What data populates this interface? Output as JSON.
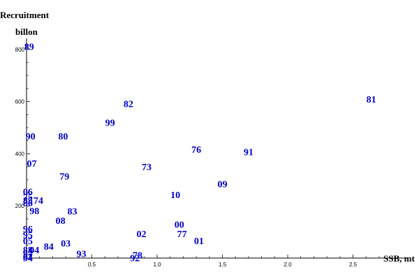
{
  "chart_data": {
    "type": "scatter",
    "title": "",
    "xlabel": "SSB, mt",
    "ylabel_line1": "Recruitment",
    "ylabel_line2": "billon",
    "xlim": [
      0,
      3.0
    ],
    "ylim": [
      0,
      850
    ],
    "x_ticks": [
      "0.5",
      "1.0",
      "1.5",
      "2.0",
      "2.5"
    ],
    "y_ticks": [
      "200",
      "400",
      "600",
      "800"
    ],
    "grid": false,
    "legend": "none",
    "point_color": "#0000cc",
    "points": [
      {
        "label": "89",
        "x": 0.02,
        "y": 812
      },
      {
        "label": "81",
        "x": 2.64,
        "y": 610
      },
      {
        "label": "82",
        "x": 0.78,
        "y": 592
      },
      {
        "label": "99",
        "x": 0.64,
        "y": 520
      },
      {
        "label": "90",
        "x": 0.03,
        "y": 468
      },
      {
        "label": "80",
        "x": 0.28,
        "y": 468
      },
      {
        "label": "76",
        "x": 1.3,
        "y": 417
      },
      {
        "label": "91",
        "x": 1.7,
        "y": 408
      },
      {
        "label": "07",
        "x": 0.04,
        "y": 363
      },
      {
        "label": "73",
        "x": 0.92,
        "y": 350
      },
      {
        "label": "79",
        "x": 0.29,
        "y": 314
      },
      {
        "label": "09",
        "x": 1.5,
        "y": 285
      },
      {
        "label": "06",
        "x": 0.01,
        "y": 255
      },
      {
        "label": "10",
        "x": 1.14,
        "y": 243
      },
      {
        "label": "75",
        "x": 0.01,
        "y": 235
      },
      {
        "label": "74",
        "x": 0.09,
        "y": 222
      },
      {
        "label": "85",
        "x": 0.01,
        "y": 222
      },
      {
        "label": "86",
        "x": 0.01,
        "y": 212
      },
      {
        "label": "98",
        "x": 0.06,
        "y": 182
      },
      {
        "label": "83",
        "x": 0.35,
        "y": 180
      },
      {
        "label": "08",
        "x": 0.26,
        "y": 144
      },
      {
        "label": "96",
        "x": 0.01,
        "y": 112
      },
      {
        "label": "00",
        "x": 1.17,
        "y": 130
      },
      {
        "label": "02",
        "x": 0.88,
        "y": 94
      },
      {
        "label": "77",
        "x": 1.19,
        "y": 94
      },
      {
        "label": "95",
        "x": 0.01,
        "y": 90
      },
      {
        "label": "01",
        "x": 1.32,
        "y": 67
      },
      {
        "label": "05",
        "x": 0.01,
        "y": 67
      },
      {
        "label": "03",
        "x": 0.3,
        "y": 57
      },
      {
        "label": "84",
        "x": 0.17,
        "y": 45
      },
      {
        "label": "04",
        "x": 0.06,
        "y": 32
      },
      {
        "label": "88",
        "x": 0.01,
        "y": 32
      },
      {
        "label": "97",
        "x": 0.01,
        "y": 18
      },
      {
        "label": "93",
        "x": 0.42,
        "y": 18
      },
      {
        "label": "78",
        "x": 0.85,
        "y": 12
      },
      {
        "label": "92",
        "x": 0.83,
        "y": 2
      },
      {
        "label": "87",
        "x": 0.01,
        "y": 6
      },
      {
        "label": "94",
        "x": 0.01,
        "y": 2
      }
    ]
  }
}
